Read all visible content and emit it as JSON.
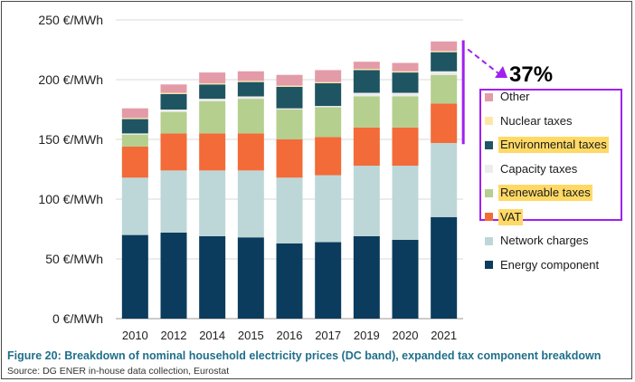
{
  "chart_data": {
    "type": "bar",
    "stacked": true,
    "title": "",
    "xlabel": "",
    "ylabel": "",
    "ylim": [
      0,
      250
    ],
    "y_ticks": [
      0,
      50,
      100,
      150,
      200,
      250
    ],
    "y_tick_labels": [
      "0 €/MWh",
      "50 €/MWh",
      "100 €/MWh",
      "150 €/MWh",
      "200 €/MWh",
      "250 €/MWh"
    ],
    "grid": true,
    "categories": [
      "2010",
      "2012",
      "2014",
      "2015",
      "2016",
      "2017",
      "2019",
      "2020",
      "2021"
    ],
    "series": [
      {
        "name": "Energy component",
        "color": "#0b3c5d",
        "values": [
          70,
          72,
          69,
          68,
          63,
          64,
          69,
          66,
          85
        ]
      },
      {
        "name": "Network charges",
        "color": "#bdd7d8",
        "values": [
          48,
          52,
          55,
          56,
          55,
          56,
          59,
          62,
          62
        ]
      },
      {
        "name": "VAT",
        "color": "#f26b38",
        "values": [
          26,
          31,
          31,
          31,
          32,
          32,
          32,
          32,
          33
        ]
      },
      {
        "name": "Renewable taxes",
        "color": "#b5cf8e",
        "values": [
          10,
          18,
          27,
          29,
          25,
          25,
          26,
          26,
          24
        ]
      },
      {
        "name": "Capacity taxes",
        "color": "#ececec",
        "values": [
          1,
          2,
          2,
          2,
          1,
          1,
          3,
          3,
          3
        ]
      },
      {
        "name": "Environmental taxes",
        "color": "#1f5562",
        "values": [
          12,
          13,
          12,
          12,
          18,
          19,
          19,
          17,
          16
        ]
      },
      {
        "name": "Nuclear taxes",
        "color": "#fde7a7",
        "values": [
          1,
          1,
          1,
          1,
          1,
          1,
          1,
          1,
          1
        ]
      },
      {
        "name": "Other",
        "color": "#e39ba8",
        "values": [
          8,
          7,
          9,
          8,
          9,
          10,
          6,
          7,
          8
        ]
      }
    ],
    "legend_order": [
      "Other",
      "Nuclear taxes",
      "Environmental taxes",
      "Capacity taxes",
      "Renewable taxes",
      "VAT",
      "Network charges",
      "Energy component"
    ],
    "highlighted_legend": [
      "Environmental taxes",
      "Renewable taxes",
      "VAT"
    ],
    "annotation": {
      "text": "37%",
      "applies_to_year": "2021",
      "range_from": 146,
      "range_to": 233
    }
  },
  "caption": "Figure 20: Breakdown of nominal household electricity prices (DC band), expanded tax component breakdown",
  "source": "Source: DG ENER in-house data collection, Eurostat",
  "colors": {
    "accent_purple": "#a020f0",
    "caption_blue": "#1f6f8b",
    "highlight": "#ffd966"
  }
}
